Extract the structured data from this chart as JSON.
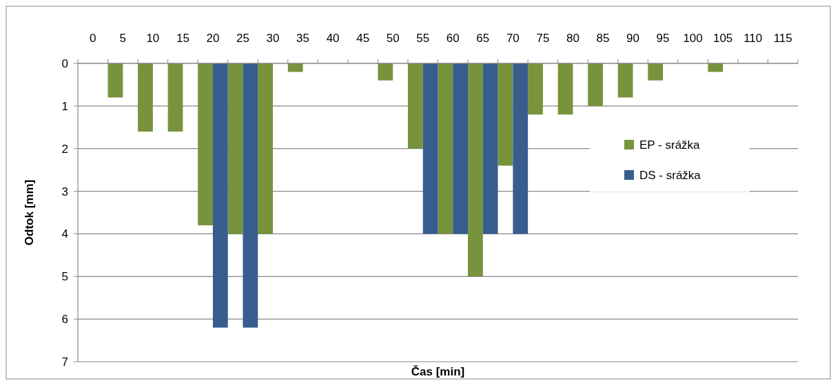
{
  "chart_data": {
    "type": "bar",
    "xlabel": "Čas [min]",
    "ylabel": "Odtok [mm]",
    "categories": [
      "0",
      "5",
      "10",
      "15",
      "20",
      "25",
      "30",
      "35",
      "40",
      "45",
      "50",
      "55",
      "60",
      "65",
      "70",
      "75",
      "80",
      "85",
      "90",
      "95",
      "100",
      "105",
      "110",
      "115"
    ],
    "series": [
      {
        "name": "EP - srážka",
        "color": "#77933c",
        "values": [
          null,
          0.8,
          1.6,
          1.6,
          3.8,
          4,
          4,
          0.2,
          null,
          null,
          0.4,
          2,
          4,
          5,
          2.4,
          1.2,
          1.2,
          1,
          0.8,
          0.4,
          null,
          0.2,
          null,
          null
        ]
      },
      {
        "name": "DS - srážka",
        "color": "#375d8e",
        "values": [
          null,
          null,
          null,
          null,
          6.2,
          6.2,
          null,
          null,
          null,
          null,
          null,
          4,
          4,
          4,
          4,
          null,
          null,
          null,
          null,
          null,
          null,
          null,
          null,
          null
        ]
      }
    ],
    "ylim": [
      7,
      0
    ],
    "yticks": [
      0,
      1,
      2,
      3,
      4,
      5,
      6,
      7
    ],
    "grid": "y",
    "legend": "right"
  }
}
